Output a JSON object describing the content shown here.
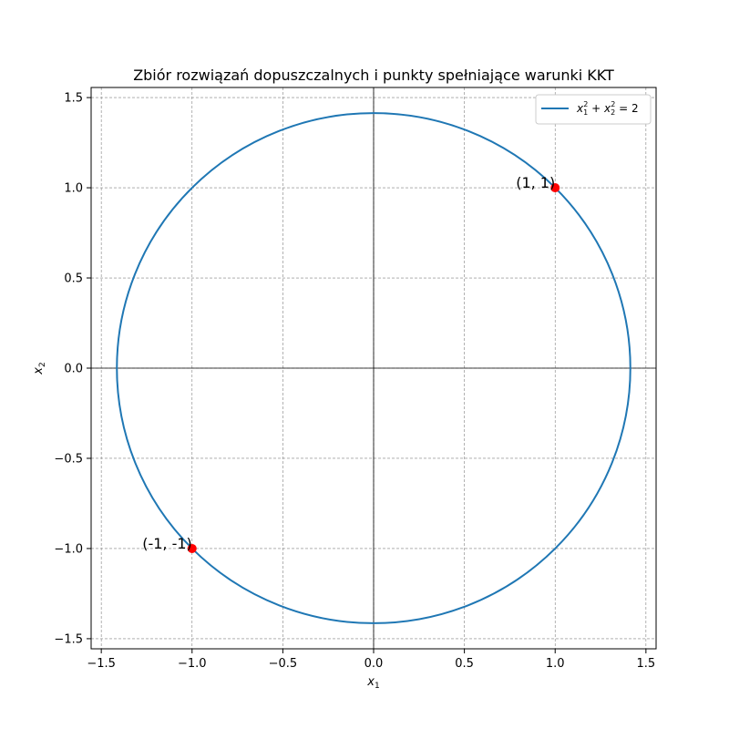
{
  "chart_data": {
    "type": "line",
    "title": "Zbiór rozwiązań dopuszczalnych i punkty spełniające warunki KKT",
    "xlabel": "x",
    "xlabel_sub": "1",
    "ylabel": "x",
    "ylabel_sub": "2",
    "xlim": [
      -1.556,
      1.556
    ],
    "ylim": [
      -1.556,
      1.556
    ],
    "xticks": [
      -1.5,
      -1.0,
      -0.5,
      0.0,
      0.5,
      1.0,
      1.5
    ],
    "yticks": [
      -1.5,
      -1.0,
      -0.5,
      0.0,
      0.5,
      1.0,
      1.5
    ],
    "xtick_labels": [
      "−1.5",
      "−1.0",
      "−0.5",
      "0.0",
      "0.5",
      "1.0",
      "1.5"
    ],
    "ytick_labels": [
      "−1.5",
      "−1.0",
      "−0.5",
      "0.0",
      "0.5",
      "1.0",
      "1.5"
    ],
    "grid": true,
    "legend_position": "top-right",
    "series": [
      {
        "name": "x1^2 + x2^2 = 2",
        "kind": "circle",
        "center": [
          0,
          0
        ],
        "radius": 1.41421356,
        "color": "#1f77b4"
      }
    ],
    "legend": {
      "parts": [
        "x",
        "1",
        "2",
        " + x",
        "2",
        "2",
        " = 2"
      ]
    },
    "points": [
      {
        "x": 1,
        "y": 1,
        "label": "(1, 1)",
        "color": "#ff0000"
      },
      {
        "x": -1,
        "y": -1,
        "label": "(-1, -1)",
        "color": "#ff0000"
      }
    ],
    "reference_lines": {
      "x0": true,
      "y0": true
    }
  }
}
